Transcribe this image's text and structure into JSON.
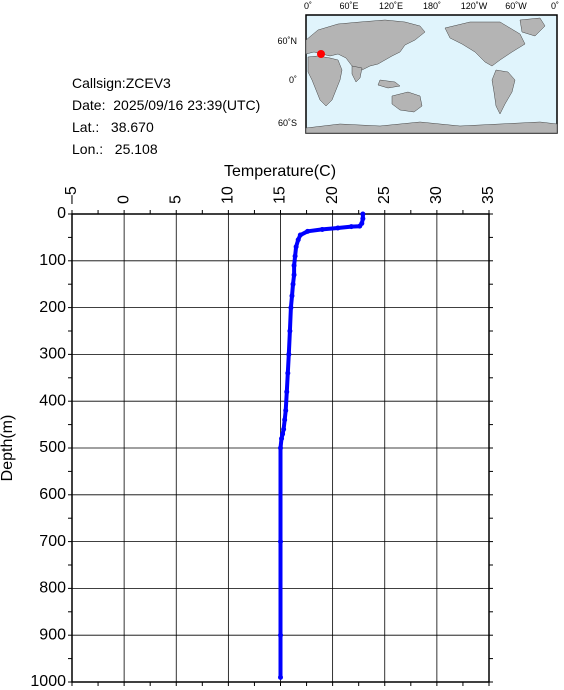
{
  "info": {
    "callsign": "Callsign:ZCEV3",
    "date": "Date:  2025/09/16 23:39(UTC)",
    "lat": "Lat.:   38.670",
    "lon": "Lon.:   25.108"
  },
  "map": {
    "lon_labels": [
      "0˚",
      "60˚E",
      "120˚E",
      "180˚",
      "120˚W",
      "60˚W",
      "0˚"
    ],
    "lat_labels": [
      "60˚N",
      "0˚",
      "60˚S"
    ],
    "ocean_color": "#e0f4fc",
    "land_color": "#b4b4b4",
    "marker": {
      "lat": 38.67,
      "lon": 25.108,
      "icon": "star-icon",
      "color": "#ff0000"
    }
  },
  "chart_data": {
    "type": "line",
    "xlabel": "Temperature(C)",
    "ylabel": "Depth(m)",
    "xlim": [
      -5,
      35
    ],
    "ylim": [
      1000,
      0
    ],
    "x_ticks": [
      -5,
      0,
      5,
      10,
      15,
      20,
      25,
      30,
      35
    ],
    "y_ticks": [
      0,
      100,
      200,
      300,
      400,
      500,
      600,
      700,
      800,
      900,
      1000
    ],
    "grid": true,
    "line_color": "#0000ff",
    "series": [
      {
        "x": [
          22.9,
          22.9,
          22.8,
          22.6,
          21.8,
          20.5,
          19.0,
          17.6,
          16.9,
          16.7,
          16.5,
          16.4,
          16.3,
          16.3,
          16.2,
          16.1,
          16.0,
          15.9,
          15.8,
          15.7,
          15.6,
          15.5,
          15.4,
          15.3,
          15.2,
          15.1,
          15.0,
          15.0,
          15.0,
          15.0
        ],
        "y": [
          0,
          10,
          20,
          26,
          27,
          30,
          33,
          37,
          45,
          55,
          70,
          90,
          110,
          130,
          150,
          175,
          200,
          250,
          300,
          340,
          380,
          420,
          440,
          460,
          470,
          480,
          500,
          700,
          900,
          990
        ]
      }
    ]
  }
}
